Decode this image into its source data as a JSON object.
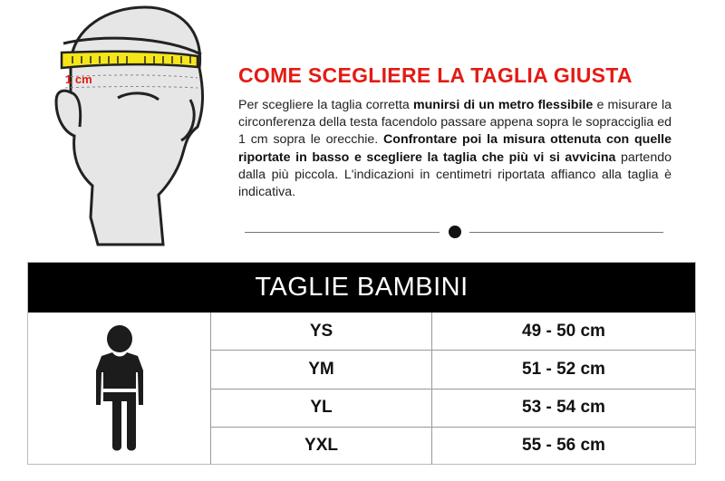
{
  "illustration": {
    "label": "1 cm",
    "tape_color": "#f5e61a"
  },
  "title": "COME SCEGLIERE LA TAGLIA GIUSTA",
  "description": {
    "p1": "Per scegliere la taglia corretta ",
    "b1": "munirsi di un metro flessibile",
    "p2": " e misurare la circonferenza della testa facendolo passare appena sopra le sopracciglia ed 1 cm sopra le orecchie. ",
    "b2": "Confrontare poi la misura ottenuta con quelle riportate in basso e scegliere la taglia che più vi si avvicina",
    "p3": " partendo dalla più piccola. L'indicazioni in centimetri riportata affianco alla taglia è indicativa."
  },
  "colors": {
    "accent": "#e31b14"
  },
  "table": {
    "header": "TAGLIE BAMBINI",
    "icon": "child-figure-icon",
    "rows": [
      {
        "size": "YS",
        "range": "49 - 50 cm"
      },
      {
        "size": "YM",
        "range": "51 - 52 cm"
      },
      {
        "size": "YL",
        "range": "53 - 54 cm"
      },
      {
        "size": "YXL",
        "range": "55 - 56 cm"
      }
    ]
  }
}
